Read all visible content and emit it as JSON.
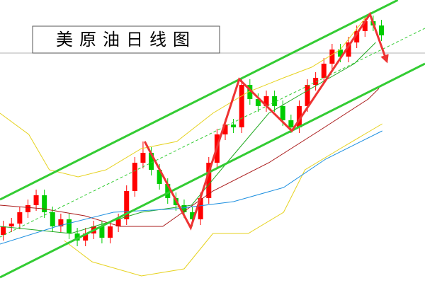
{
  "chart_data": {
    "type": "candlestick",
    "title": "美原油日线图",
    "xlim": [
      -0.4,
      51.3
    ],
    "ylim": [
      0,
      100
    ],
    "up_color": "#ff0000",
    "down_color": "#00cc00",
    "open": [
      17,
      20,
      21,
      25,
      27.5,
      31,
      25,
      20,
      22.5,
      17.5,
      15,
      17.5,
      20,
      16,
      20,
      22.5,
      32.5,
      42.5,
      46,
      40,
      35,
      30,
      27.5,
      25,
      22.5,
      30,
      42.5,
      52.5,
      56,
      55,
      70,
      65,
      62.5,
      66,
      62.5,
      57.5,
      55,
      62.5,
      70,
      72.5,
      77.5,
      82.5,
      80,
      85,
      89,
      92.5,
      91
    ],
    "high": [
      22,
      23,
      27,
      29.5,
      33,
      33,
      27,
      24.5,
      24.5,
      19.5,
      19.5,
      22,
      22,
      22,
      24.5,
      34.5,
      44.5,
      50,
      48,
      42,
      37,
      32,
      29.5,
      27,
      32,
      44.5,
      54.5,
      58,
      58,
      72,
      72,
      67,
      68,
      68,
      64.5,
      59.5,
      64.5,
      72,
      74.5,
      79.5,
      84.5,
      84.5,
      87,
      91,
      94.5,
      94.5,
      93
    ],
    "low": [
      15,
      18,
      19,
      23,
      25.5,
      23,
      18,
      18,
      15.5,
      13,
      13,
      15.5,
      14,
      14,
      18,
      20.5,
      30.5,
      40.5,
      38,
      33,
      28,
      25.5,
      23,
      20,
      20.5,
      28,
      40.5,
      50.5,
      53,
      53,
      63,
      60.5,
      60.5,
      60.5,
      55.5,
      53,
      53,
      60.5,
      68,
      70.5,
      75.5,
      78,
      78,
      83,
      87,
      89,
      85.5
    ],
    "close": [
      20,
      21,
      25,
      27.5,
      31,
      25,
      20,
      22.5,
      17.5,
      15,
      17.5,
      20,
      16,
      20,
      22.5,
      32.5,
      42.5,
      46,
      40,
      35,
      30,
      27.5,
      25,
      22.5,
      30,
      42.5,
      52.5,
      56,
      55,
      70,
      65,
      62.5,
      66,
      62.5,
      57.5,
      55,
      62.5,
      70,
      72.5,
      77.5,
      82.5,
      80,
      85,
      89,
      92.5,
      91,
      87.5
    ],
    "reference_line": {
      "value": 81.25,
      "color": "#b0b0b0"
    },
    "series": [
      {
        "color": "#e6d21e",
        "width": 1,
        "x": [
          -0.4,
          3.1,
          5.6,
          9.1,
          12.5,
          16.8,
          21.1,
          25.5,
          29.8,
          34.1,
          37.5,
          41.0,
          44.4,
          47.9
        ],
        "values": [
          60,
          52.5,
          40,
          37.5,
          40,
          47.5,
          50,
          60,
          67.5,
          72.5,
          76.25,
          82.5,
          95,
          100
        ]
      },
      {
        "color": "#e6d21e",
        "width": 1,
        "x": [
          7.4,
          10.8,
          16.8,
          22.0,
          25.5,
          29.8,
          34.1,
          36.7,
          41.0,
          46.1
        ],
        "values": [
          15,
          7.5,
          2.5,
          5,
          17.5,
          17.5,
          25,
          40,
          47.5,
          56.25
        ]
      },
      {
        "color": "#22aa22",
        "width": 1,
        "x": [
          -0.4,
          8.2,
          16.8,
          22.9,
          27.2,
          32.3,
          36.7,
          42.7,
          45.3
        ],
        "values": [
          20,
          17.5,
          25,
          27.5,
          42.5,
          60,
          67.5,
          77.5,
          85
        ]
      },
      {
        "color": "#aa1a1a",
        "width": 1,
        "x": [
          -0.4,
          4.8,
          9.9,
          14.2,
          19.4,
          25.5,
          32.3,
          38.4,
          44.4,
          45.7
        ],
        "values": [
          27.5,
          26.25,
          23.75,
          20,
          20,
          32.5,
          42.5,
          53.75,
          65,
          68.75
        ]
      },
      {
        "color": "#1e90e0",
        "width": 1,
        "x": [
          -0.4,
          6.5,
          13.4,
          21.1,
          28.0,
          34.1,
          39.2,
          46.1
        ],
        "values": [
          13.75,
          20,
          25,
          26.25,
          28.75,
          33.75,
          43.75,
          53.75
        ]
      },
      {
        "color": "#33cc33",
        "width": 3,
        "x": [
          -0.4,
          48
        ],
        "values": [
          29.5,
          100
        ]
      },
      {
        "color": "#33cc33",
        "width": 3,
        "x": [
          -0.4,
          51.3
        ],
        "values": [
          2,
          77.5
        ]
      },
      {
        "color": "#33cc33",
        "width": 1,
        "dashed": true,
        "x": [
          -0.4,
          51.3
        ],
        "values": [
          16.25,
          90
        ]
      },
      {
        "color": "#ee3333",
        "width": 3,
        "arrow": true,
        "x": [
          17.2,
          22.8,
          28.7,
          35.1,
          44.6,
          46.6
        ],
        "values": [
          50,
          19.5,
          72,
          53.75,
          95,
          78.75
        ]
      }
    ]
  }
}
